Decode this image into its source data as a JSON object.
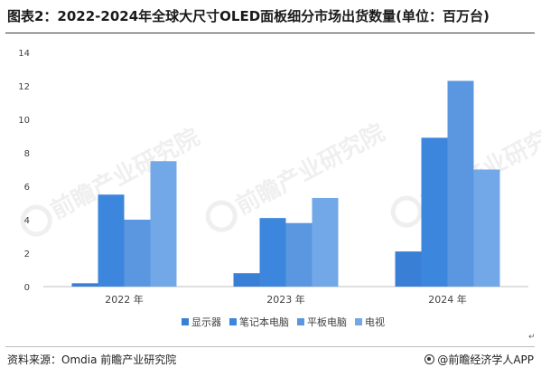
{
  "title": "图表2：2022-2024年全球大尺寸OLED面板细分市场出货数量(单位：百万台)",
  "source": "资料来源：Omdia 前瞻产业研究院",
  "brand": "@前瞻经济学人APP",
  "watermark": "前瞻产业研究院",
  "return_mark": "↵",
  "colors": {
    "axis": "#bfbfbf",
    "grid": "#d9d9d9",
    "text": "#404040"
  },
  "chart_data": {
    "type": "bar",
    "categories": [
      "2022 年",
      "2023 年",
      "2024 年"
    ],
    "series": [
      {
        "name": "显示器",
        "values": [
          0.2,
          0.8,
          2.1
        ],
        "color": "#3a7fd6"
      },
      {
        "name": "笔记本电脑",
        "values": [
          5.5,
          4.1,
          8.9
        ],
        "color": "#3d86de"
      },
      {
        "name": "平板电脑",
        "values": [
          4.0,
          3.8,
          12.3
        ],
        "color": "#5b96e0"
      },
      {
        "name": "电视",
        "values": [
          7.5,
          5.3,
          7.0
        ],
        "color": "#72a8e8"
      }
    ],
    "ylim": [
      0,
      14
    ],
    "yticks": [
      0,
      2,
      4,
      6,
      8,
      10,
      12,
      14
    ],
    "legend_position": "bottom",
    "grid": false
  }
}
